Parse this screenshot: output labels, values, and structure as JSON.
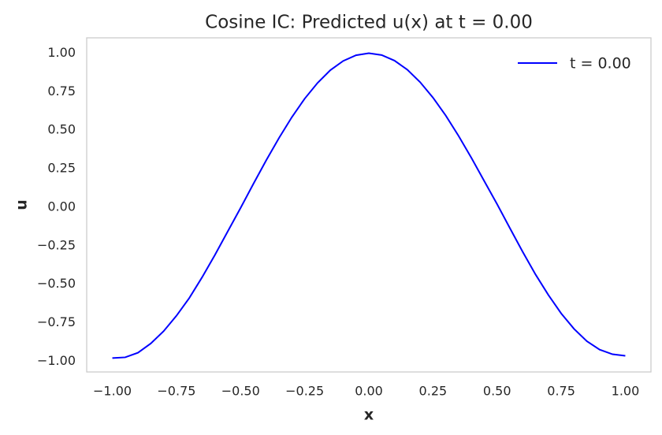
{
  "chart_data": {
    "type": "line",
    "title": "Cosine IC: Predicted u(x) at t = 0.00",
    "xlabel": "x",
    "ylabel": "u",
    "x": [
      -1.0,
      -0.95,
      -0.9,
      -0.85,
      -0.8,
      -0.75,
      -0.7,
      -0.65,
      -0.6,
      -0.55,
      -0.5,
      -0.45,
      -0.4,
      -0.35,
      -0.3,
      -0.25,
      -0.2,
      -0.15,
      -0.1,
      -0.05,
      0.0,
      0.05,
      0.1,
      0.15,
      0.2,
      0.25,
      0.3,
      0.35,
      0.4,
      0.45,
      0.5,
      0.55,
      0.6,
      0.65,
      0.7,
      0.75,
      0.8,
      0.85,
      0.9,
      0.95,
      1.0
    ],
    "series": [
      {
        "name": "t = 0.00",
        "color": "#0000ff",
        "values": [
          -0.98,
          -0.975,
          -0.945,
          -0.885,
          -0.805,
          -0.705,
          -0.59,
          -0.455,
          -0.31,
          -0.157,
          -0.005,
          0.152,
          0.305,
          0.45,
          0.585,
          0.705,
          0.807,
          0.89,
          0.95,
          0.987,
          1.0,
          0.988,
          0.952,
          0.893,
          0.812,
          0.712,
          0.595,
          0.463,
          0.32,
          0.17,
          0.02,
          -0.136,
          -0.29,
          -0.437,
          -0.57,
          -0.69,
          -0.79,
          -0.87,
          -0.925,
          -0.955,
          -0.965
        ]
      }
    ],
    "xlim": [
      -1.1,
      1.1
    ],
    "ylim": [
      -1.07,
      1.1
    ],
    "xticks": [
      {
        "value": -1.0,
        "label": "−1.00"
      },
      {
        "value": -0.75,
        "label": "−0.75"
      },
      {
        "value": -0.5,
        "label": "−0.50"
      },
      {
        "value": -0.25,
        "label": "−0.25"
      },
      {
        "value": 0.0,
        "label": "0.00"
      },
      {
        "value": 0.25,
        "label": "0.25"
      },
      {
        "value": 0.5,
        "label": "0.50"
      },
      {
        "value": 0.75,
        "label": "0.75"
      },
      {
        "value": 1.0,
        "label": "1.00"
      }
    ],
    "yticks": [
      {
        "value": -1.0,
        "label": "−1.00"
      },
      {
        "value": -0.75,
        "label": "−0.75"
      },
      {
        "value": -0.5,
        "label": "−0.50"
      },
      {
        "value": -0.25,
        "label": "−0.25"
      },
      {
        "value": 0.0,
        "label": "0.00"
      },
      {
        "value": 0.25,
        "label": "0.25"
      },
      {
        "value": 0.5,
        "label": "0.50"
      },
      {
        "value": 0.75,
        "label": "0.75"
      },
      {
        "value": 1.0,
        "label": "1.00"
      }
    ],
    "grid": false,
    "legend": "upper right"
  }
}
